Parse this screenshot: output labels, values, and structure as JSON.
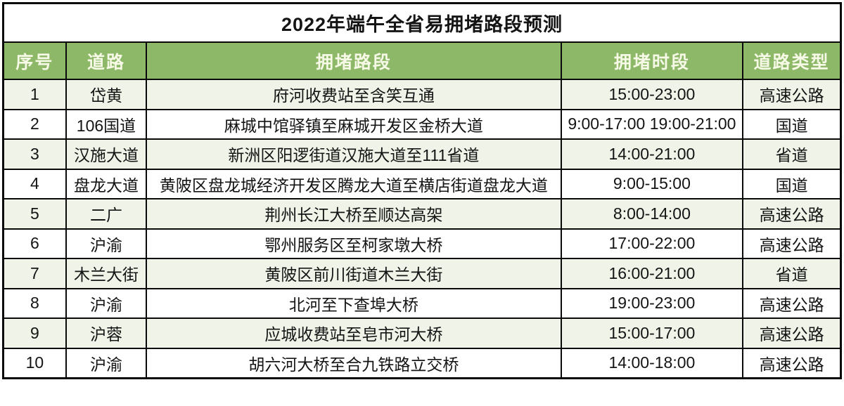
{
  "colors": {
    "header_bg": "#8DB867",
    "header_text": "#F6F9E6",
    "row_alt_bg": "#EFF3E8",
    "row_bg": "#FFFFFF",
    "border": "#0A0A0A",
    "title_text": "#141414",
    "body_text": "#141414"
  },
  "table": {
    "title": "2022年端午全省易拥堵路段预测",
    "columns": [
      {
        "key": "seq",
        "label": "序号"
      },
      {
        "key": "road",
        "label": "道路"
      },
      {
        "key": "section",
        "label": "拥堵路段"
      },
      {
        "key": "time",
        "label": "拥堵时段"
      },
      {
        "key": "type",
        "label": "道路类型"
      }
    ],
    "rows": [
      {
        "seq": "1",
        "road": "岱黄",
        "section": "府河收费站至含笑互通",
        "time": "15:00-23:00",
        "type": "高速公路"
      },
      {
        "seq": "2",
        "road": "106国道",
        "section": "麻城中馆驿镇至麻城开发区金桥大道",
        "time": "9:00-17:00 19:00-21:00",
        "type": "国道"
      },
      {
        "seq": "3",
        "road": "汉施大道",
        "section": "新洲区阳逻街道汉施大道至111省道",
        "time": "14:00-21:00",
        "type": "省道"
      },
      {
        "seq": "4",
        "road": "盘龙大道",
        "section": "黄陂区盘龙城经济开发区腾龙大道至横店街道盘龙大道",
        "time": "9:00-15:00",
        "type": "国道"
      },
      {
        "seq": "5",
        "road": "二广",
        "section": "荆州长江大桥至顺达高架",
        "time": "8:00-14:00",
        "type": "高速公路"
      },
      {
        "seq": "6",
        "road": "沪渝",
        "section": "鄂州服务区至柯家墩大桥",
        "time": "17:00-22:00",
        "type": "高速公路"
      },
      {
        "seq": "7",
        "road": "木兰大街",
        "section": "黄陂区前川街道木兰大街",
        "time": "16:00-21:00",
        "type": "省道"
      },
      {
        "seq": "8",
        "road": "沪渝",
        "section": "北河至下查埠大桥",
        "time": "19:00-23:00",
        "type": "高速公路"
      },
      {
        "seq": "9",
        "road": "沪蓉",
        "section": "应城收费站至皂市河大桥",
        "time": "15:00-17:00",
        "type": "高速公路"
      },
      {
        "seq": "10",
        "road": "沪渝",
        "section": "胡六河大桥至合九铁路立交桥",
        "time": "14:00-18:00",
        "type": "高速公路"
      }
    ]
  }
}
